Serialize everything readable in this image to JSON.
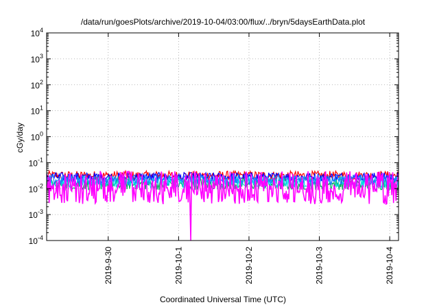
{
  "chart_data": {
    "type": "line",
    "title": "/data/run/goesPlots/archive/2019-10-04/03:00/flux/../bryn/5daysEarthData.plot",
    "xlabel": "Coordinated Universal Time (UTC)",
    "ylabel": "cGy/day",
    "yscale": "log",
    "ylim": [
      0.0001,
      10000
    ],
    "y_ticks": [
      {
        "base": "10",
        "exp": "-4",
        "value": 0.0001
      },
      {
        "base": "10",
        "exp": "-3",
        "value": 0.001
      },
      {
        "base": "10",
        "exp": "-2",
        "value": 0.01
      },
      {
        "base": "10",
        "exp": "-1",
        "value": 0.1
      },
      {
        "base": "10",
        "exp": "0",
        "value": 1
      },
      {
        "base": "10",
        "exp": "1",
        "value": 10
      },
      {
        "base": "10",
        "exp": "2",
        "value": 100
      },
      {
        "base": "10",
        "exp": "3",
        "value": 1000
      },
      {
        "base": "10",
        "exp": "4",
        "value": 10000
      }
    ],
    "xlim": [
      "2019-09-29T03:00",
      "2019-10-04T03:00"
    ],
    "x_ticks": [
      "2019-9-30",
      "2019-10-1",
      "2019-10-2",
      "2019-10-3",
      "2019-10-4"
    ],
    "grid": true,
    "series": [
      {
        "color": "#ff0000",
        "base": 0.032,
        "spread": 0.35
      },
      {
        "color": "#0000ff",
        "base": 0.028,
        "spread": 0.35
      },
      {
        "color": "#00b060",
        "base": 0.015,
        "spread": 0.45
      },
      {
        "color": "#00d8e8",
        "base": 0.018,
        "spread": 0.45
      },
      {
        "color": "#1e78ff",
        "base": 0.022,
        "spread": 0.4
      },
      {
        "color": "#ff00ff",
        "base": 0.006,
        "spread": 0.75
      }
    ]
  }
}
